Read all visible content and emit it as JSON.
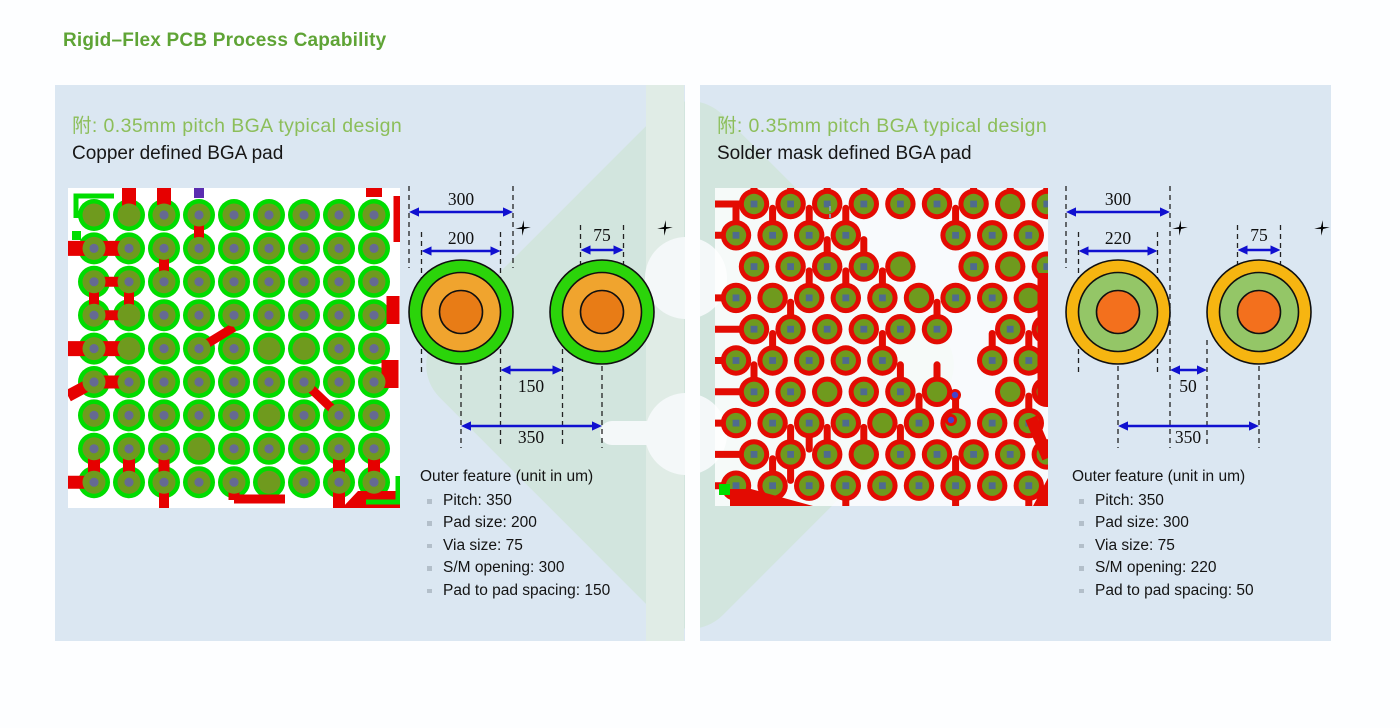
{
  "page": {
    "title": "Rigid–Flex PCB Process Capability",
    "title_color": "#5fa436",
    "header_green": "#8cbe5a",
    "panel_background": "#dbe7f2",
    "watermark_color": "#d2e5de",
    "dimension_arrow_blue": "#1010d0"
  },
  "panels": [
    {
      "header": "附: 0.35mm pitch BGA typical design",
      "subtitle": "Copper defined BGA pad",
      "diagram": {
        "labels": {
          "outer": "300",
          "mid": "200",
          "via": "75",
          "gap": "150",
          "pitch": "350"
        },
        "gap_edge": "mid",
        "pad_colors": {
          "outer": "#2bd40a",
          "mid": "#f0a42e",
          "inner": "#e87c16"
        }
      },
      "specs": {
        "heading": "Outer feature (unit in um)",
        "items": [
          "Pitch: 350",
          "Pad size: 200",
          "Via size: 75",
          "S/M opening: 300",
          "Pad to pad spacing: 150"
        ]
      },
      "pcb": {
        "type": "copper-defined-grid",
        "colors": {
          "bg": "#ffffff",
          "mask": "#00dc00",
          "pad": "#6f9a1e",
          "via": "#656a92",
          "trace": "#e60000",
          "fiducial": "#00dd00",
          "violet": "#5b2db0"
        }
      }
    },
    {
      "header": "附: 0.35mm pitch BGA typical design",
      "subtitle": "Solder mask defined BGA pad",
      "diagram": {
        "labels": {
          "outer": "300",
          "mid": "220",
          "via": "75",
          "gap": "50",
          "pitch": "350"
        },
        "gap_edge": "outer",
        "pad_colors": {
          "outer": "#f6b511",
          "mid": "#94c667",
          "inner": "#f3701d"
        }
      },
      "specs": {
        "heading": "Outer feature (unit in um)",
        "items": [
          "Pitch: 350",
          "Pad size: 300",
          "Via size: 75",
          "S/M opening: 220",
          "Pad to pad spacing: 50"
        ]
      },
      "pcb": {
        "type": "mask-defined-staggered",
        "colors": {
          "bg": "rgba(255,255,255,0.8)",
          "copper": "#e30b02",
          "pad": "#6f9a1e",
          "via": "#4f6b8e",
          "fiducial": "#00dd00",
          "via2": "#4444cc"
        }
      }
    }
  ]
}
